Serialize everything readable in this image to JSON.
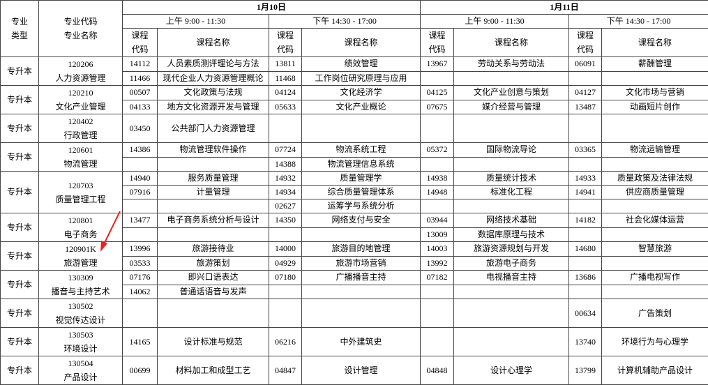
{
  "header": {
    "major_type": "专业类型",
    "major_code": "专业代码",
    "major_name": "专业名称",
    "course_code": "课程代码",
    "course_name": "课程名称",
    "days": [
      {
        "date": "1月10日",
        "sessions": [
          "上午 9:00 - 11:30",
          "下午 14:30 - 17:00"
        ]
      },
      {
        "date": "1月11日",
        "sessions": [
          "上午 9:00 - 11:30",
          "下午 14:30 - 17:00"
        ]
      }
    ]
  },
  "majors": [
    {
      "type": "专升本",
      "code": "120206",
      "name": "人力资源管理",
      "rows": [
        [
          "14112",
          "人员素质测评理论与方法",
          "13811",
          "绩效管理",
          "13967",
          "劳动关系与劳动法",
          "06091",
          "薪酬管理"
        ],
        [
          "11466",
          "现代企业人力资源管理概论",
          "11468",
          "工作岗位研究原理与应用",
          null,
          null,
          null,
          null
        ]
      ]
    },
    {
      "type": "专升本",
      "code": "120210",
      "name": "文化产业管理",
      "rows": [
        [
          "00507",
          "文化政策与法规",
          "04124",
          "文化经济学",
          "04125",
          "文化产业创意与策划",
          "04127",
          "文化市场与营销"
        ],
        [
          "04133",
          "地方文化资源开发与管理",
          "05633",
          "文化产业概论",
          "07675",
          "媒介经营与管理",
          "13487",
          "动画短片创作"
        ]
      ]
    },
    {
      "type": "专升本",
      "code": "120402",
      "name": "行政管理",
      "rows": [
        [
          "03450",
          "公共部门人力资源管理",
          null,
          null,
          null,
          null,
          null,
          null
        ]
      ]
    },
    {
      "type": "专升本",
      "code": "120601",
      "name": "物流管理",
      "rows": [
        [
          "14386",
          "物流管理软件操作",
          "07724",
          "物流系统工程",
          "05372",
          "国际物流导论",
          "03365",
          "物流运输管理"
        ],
        [
          null,
          null,
          "14388",
          "物流管理信息系统",
          null,
          null,
          null,
          null
        ]
      ]
    },
    {
      "type": "专升本",
      "code": "120703",
      "name": "质量管理工程",
      "rows": [
        [
          "14940",
          "服务质量管理",
          "14932",
          "质量管理学",
          "14938",
          "质量统计技术",
          "14933",
          "质量政策及法律法规"
        ],
        [
          "07916",
          "计量管理",
          "14934",
          "综合质量管理体系",
          "14948",
          "标准化工程",
          "14941",
          "供应商质量管理"
        ],
        [
          null,
          null,
          "02627",
          "运筹学与系统分析",
          null,
          null,
          null,
          null
        ]
      ]
    },
    {
      "type": "专升本",
      "code": "120801",
      "name": "电子商务",
      "rows": [
        [
          "13477",
          "电子商务系统分析与设计",
          "14350",
          "网络支付与安全",
          "03944",
          "网络技术基础",
          "14182",
          "社会化媒体运营"
        ],
        [
          null,
          null,
          null,
          null,
          "13009",
          "数据库原理与技术",
          null,
          null
        ]
      ]
    },
    {
      "type": "专升本",
      "code": "120901K",
      "name": "旅游管理",
      "rows": [
        [
          "13996",
          "旅游接待业",
          "14000",
          "旅游目的地管理",
          "14003",
          "旅游资源规划与开发",
          "14680",
          "智慧旅游"
        ],
        [
          "03533",
          "旅游策划",
          "04929",
          "旅游市场营销",
          "13992",
          "旅游电子商务",
          null,
          null
        ]
      ]
    },
    {
      "type": "专升本",
      "code": "130309",
      "name": "播音与主持艺术",
      "rows": [
        [
          "07176",
          "即兴口语表达",
          "07180",
          "广播播音主持",
          "07182",
          "电视播音主持",
          "13686",
          "广播电视写作"
        ],
        [
          "14062",
          "普通话语音与发声",
          null,
          null,
          null,
          null,
          null,
          null
        ]
      ]
    },
    {
      "type": "专升本",
      "code": "130502",
      "name": "视觉传达设计",
      "rows": [
        [
          null,
          null,
          null,
          null,
          null,
          null,
          "00634",
          "广告策划"
        ]
      ]
    },
    {
      "type": "专升本",
      "code": "130503",
      "name": "环境设计",
      "rows": [
        [
          "14165",
          "设计标准与规范",
          "06216",
          "中外建筑史",
          null,
          null,
          "13740",
          "环境行为与心理学"
        ]
      ]
    },
    {
      "type": "专升本",
      "code": "130504",
      "name": "产品设计",
      "rows": [
        [
          "00699",
          "材料加工和成型工艺",
          "04847",
          "设计管理",
          "04848",
          "设计心理学",
          "13799",
          "计算机辅助产品设计"
        ]
      ]
    }
  ]
}
